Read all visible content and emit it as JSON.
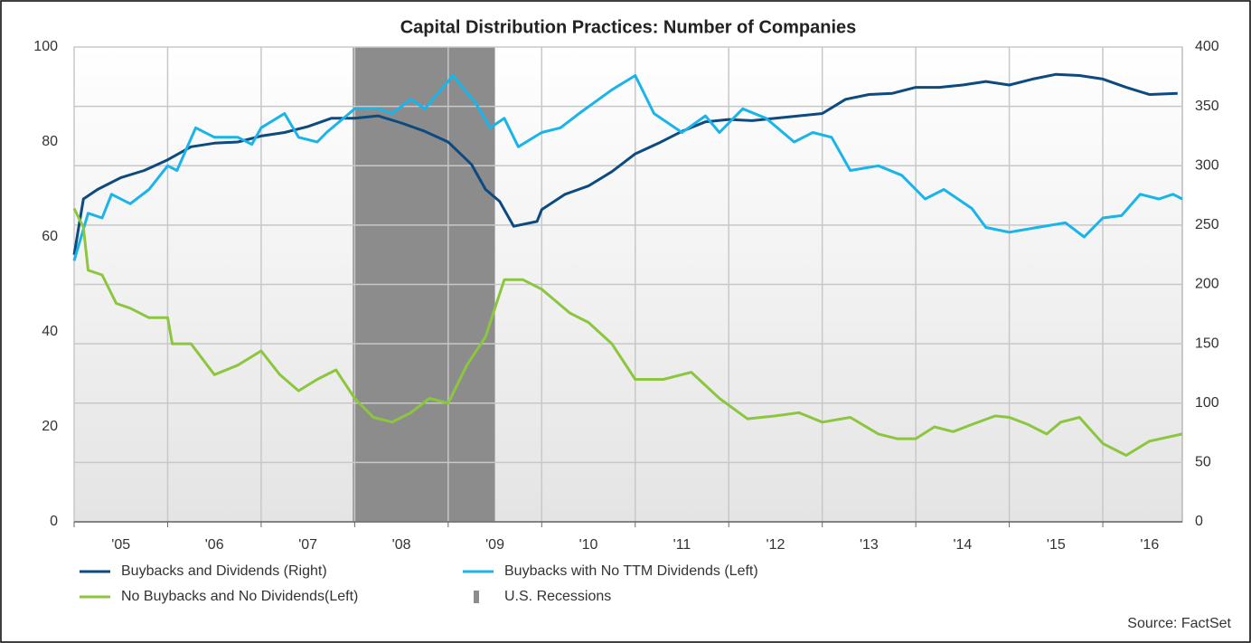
{
  "chart_data": {
    "type": "line",
    "title": "Capital Distribution Practices: Number of Companies",
    "source": "Source: FactSet",
    "xlim": [
      2005,
      2016.85
    ],
    "xticks": [
      {
        "value": 2005,
        "label": "'05"
      },
      {
        "value": 2006,
        "label": "'06"
      },
      {
        "value": 2007,
        "label": "'07"
      },
      {
        "value": 2008,
        "label": "'08"
      },
      {
        "value": 2009,
        "label": "'09"
      },
      {
        "value": 2010,
        "label": "'10"
      },
      {
        "value": 2011,
        "label": "'11"
      },
      {
        "value": 2012,
        "label": "'12"
      },
      {
        "value": 2013,
        "label": "'13"
      },
      {
        "value": 2014,
        "label": "'14"
      },
      {
        "value": 2015,
        "label": "'15"
      },
      {
        "value": 2016,
        "label": "'16"
      }
    ],
    "ylim": [
      0,
      100
    ],
    "yticks": [
      0,
      20,
      40,
      60,
      80,
      100
    ],
    "y2lim": [
      0,
      400
    ],
    "y2ticks": [
      0,
      50,
      100,
      150,
      200,
      250,
      300,
      350,
      400
    ],
    "grid": true,
    "recessions": {
      "name": "U.S. Recessions",
      "color": "#8c8c8c",
      "spans": [
        [
          2007.98,
          2009.5
        ]
      ]
    },
    "series": [
      {
        "name": "Buybacks and Dividends (Right)",
        "color": "#0d4a7f",
        "axis": "y2",
        "x": [
          2005.0,
          2005.1,
          2005.25,
          2005.5,
          2005.75,
          2006.0,
          2006.25,
          2006.5,
          2006.75,
          2007.0,
          2007.25,
          2007.5,
          2007.75,
          2008.0,
          2008.25,
          2008.5,
          2008.75,
          2009.0,
          2009.25,
          2009.4,
          2009.55,
          2009.7,
          2009.95,
          2010.0,
          2010.25,
          2010.5,
          2010.75,
          2011.0,
          2011.25,
          2011.5,
          2011.75,
          2012.0,
          2012.25,
          2012.5,
          2012.75,
          2013.0,
          2013.25,
          2013.5,
          2013.75,
          2014.0,
          2014.25,
          2014.5,
          2014.75,
          2015.0,
          2015.25,
          2015.5,
          2015.75,
          2016.0,
          2016.25,
          2016.5,
          2016.8
        ],
        "values": [
          225,
          272,
          280,
          290,
          296,
          305,
          316,
          319,
          320,
          325,
          328,
          333,
          340,
          340,
          342,
          336,
          329,
          320,
          301,
          280,
          270,
          249,
          253,
          263,
          276,
          283,
          295,
          310,
          319,
          329,
          337,
          339,
          338,
          340,
          342,
          344,
          356,
          360,
          361,
          366,
          366,
          368,
          371,
          368,
          373,
          377,
          376,
          373,
          366,
          360,
          361
        ]
      },
      {
        "name": "Buybacks with No TTM Dividends (Left)",
        "color": "#18b4ea",
        "axis": "y",
        "x": [
          2005.0,
          2005.15,
          2005.3,
          2005.4,
          2005.6,
          2005.8,
          2006.0,
          2006.1,
          2006.3,
          2006.5,
          2006.75,
          2006.9,
          2007.0,
          2007.25,
          2007.4,
          2007.6,
          2007.7,
          2008.0,
          2008.25,
          2008.4,
          2008.6,
          2008.75,
          2008.95,
          2009.05,
          2009.3,
          2009.45,
          2009.6,
          2009.75,
          2010.0,
          2010.2,
          2010.4,
          2010.75,
          2011.0,
          2011.2,
          2011.5,
          2011.75,
          2011.9,
          2012.15,
          2012.4,
          2012.7,
          2012.9,
          2013.1,
          2013.3,
          2013.6,
          2013.85,
          2014.1,
          2014.3,
          2014.6,
          2014.75,
          2015.0,
          2015.3,
          2015.6,
          2015.8,
          2016.0,
          2016.2,
          2016.4,
          2016.6,
          2016.75,
          2016.85
        ],
        "values": [
          55,
          65,
          64,
          69,
          67,
          70,
          75,
          74,
          83,
          81,
          81,
          79.5,
          83,
          86,
          81,
          80,
          82,
          87,
          87,
          86,
          89,
          87,
          91.6,
          94,
          88,
          83,
          85,
          79,
          82,
          83,
          86,
          91,
          94,
          86,
          82,
          85.5,
          82,
          87,
          85,
          80,
          82,
          81,
          74,
          75,
          73,
          68,
          70,
          66,
          62,
          61,
          62,
          63,
          60,
          64,
          64.5,
          69,
          68,
          69,
          68
        ]
      },
      {
        "name": "No Buybacks and No Dividends(Left)",
        "color": "#8cc63f",
        "axis": "y",
        "x": [
          2005.0,
          2005.1,
          2005.15,
          2005.3,
          2005.45,
          2005.6,
          2005.8,
          2006.0,
          2006.05,
          2006.25,
          2006.5,
          2006.75,
          2007.0,
          2007.2,
          2007.4,
          2007.6,
          2007.8,
          2008.0,
          2008.2,
          2008.4,
          2008.6,
          2008.8,
          2009.0,
          2009.2,
          2009.4,
          2009.6,
          2009.8,
          2010.0,
          2010.3,
          2010.5,
          2010.75,
          2011.0,
          2011.3,
          2011.6,
          2011.9,
          2012.2,
          2012.5,
          2012.75,
          2013.0,
          2013.3,
          2013.6,
          2013.8,
          2014.0,
          2014.2,
          2014.4,
          2014.6,
          2014.85,
          2015.0,
          2015.2,
          2015.4,
          2015.55,
          2015.75,
          2016.0,
          2016.25,
          2016.5,
          2016.85
        ],
        "values": [
          66,
          62,
          53,
          52,
          46,
          45,
          43,
          43,
          37.5,
          37.5,
          31,
          33,
          36,
          31,
          27.6,
          30,
          32,
          26,
          22,
          21,
          23,
          26,
          25,
          33,
          39,
          51,
          51,
          49,
          44,
          42,
          37.5,
          30,
          30,
          31.5,
          26,
          21.7,
          22.3,
          23,
          21,
          22,
          18.5,
          17.5,
          17.5,
          20,
          19,
          20.5,
          22.3,
          22,
          20.5,
          18.5,
          21,
          22,
          16.5,
          14,
          17,
          18.5
        ]
      }
    ]
  }
}
